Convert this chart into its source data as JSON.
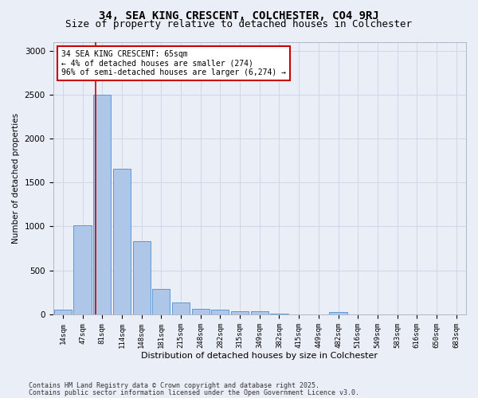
{
  "title1": "34, SEA KING CRESCENT, COLCHESTER, CO4 9RJ",
  "title2": "Size of property relative to detached houses in Colchester",
  "xlabel": "Distribution of detached houses by size in Colchester",
  "ylabel": "Number of detached properties",
  "categories": [
    "14sqm",
    "47sqm",
    "81sqm",
    "114sqm",
    "148sqm",
    "181sqm",
    "215sqm",
    "248sqm",
    "282sqm",
    "315sqm",
    "349sqm",
    "382sqm",
    "415sqm",
    "449sqm",
    "482sqm",
    "516sqm",
    "549sqm",
    "583sqm",
    "616sqm",
    "650sqm",
    "683sqm"
  ],
  "values": [
    55,
    1010,
    2500,
    1660,
    830,
    290,
    135,
    60,
    55,
    40,
    35,
    10,
    0,
    0,
    25,
    0,
    0,
    0,
    0,
    0,
    0
  ],
  "bar_color": "#aec6e8",
  "bar_edge_color": "#5b9bd5",
  "property_line_x": 1.65,
  "annotation_text": "34 SEA KING CRESCENT: 65sqm\n← 4% of detached houses are smaller (274)\n96% of semi-detached houses are larger (6,274) →",
  "annotation_box_color": "#ffffff",
  "annotation_box_edge": "#cc0000",
  "vline_color": "#cc0000",
  "grid_color": "#d0d8e8",
  "bg_color": "#eaeff7",
  "footer1": "Contains HM Land Registry data © Crown copyright and database right 2025.",
  "footer2": "Contains public sector information licensed under the Open Government Licence v3.0.",
  "ylim": [
    0,
    3100
  ],
  "title1_fontsize": 10,
  "title2_fontsize": 9
}
